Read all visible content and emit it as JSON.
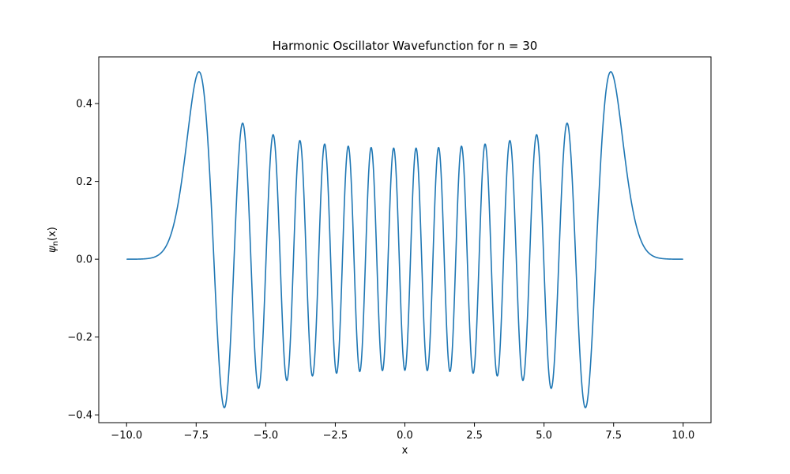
{
  "chart_data": {
    "type": "line",
    "title": "Harmonic Oscillator Wavefunction for n = 30",
    "xlabel": "x",
    "ylabel_symbol": "ψ",
    "ylabel_sub": "n",
    "ylabel_arg": "(x)",
    "xlim": [
      -11.0,
      11.0
    ],
    "ylim": [
      -0.42,
      0.52
    ],
    "x_ticks": [
      -10.0,
      -7.5,
      -5.0,
      -2.5,
      0.0,
      2.5,
      5.0,
      7.5,
      10.0
    ],
    "x_tick_labels": [
      "−10.0",
      "−7.5",
      "−5.0",
      "−2.5",
      "0.0",
      "2.5",
      "5.0",
      "7.5",
      "10.0"
    ],
    "y_ticks": [
      -0.4,
      -0.2,
      0.0,
      0.2,
      0.4
    ],
    "y_tick_labels": [
      "−0.4",
      "−0.2",
      "0.0",
      "0.2",
      "0.4"
    ],
    "grid": false,
    "series": [
      {
        "n": 30,
        "x_range": [
          -10.0,
          10.0
        ],
        "color": "#1f77b4"
      }
    ]
  }
}
